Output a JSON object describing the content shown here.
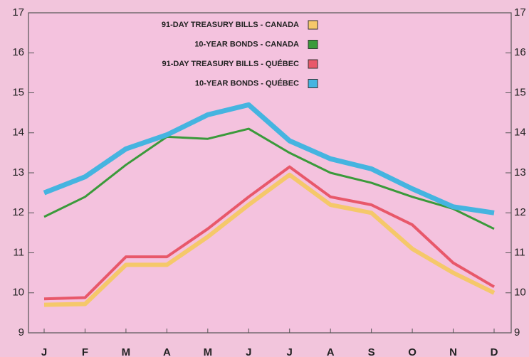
{
  "chart_data": {
    "type": "line",
    "categories": [
      "J",
      "F",
      "M",
      "A",
      "M",
      "J",
      "J",
      "A",
      "S",
      "O",
      "N",
      "D"
    ],
    "series": [
      {
        "name": "91-DAY TREASURY BILLS - CANADA",
        "color": "#f5c86a",
        "width": 6,
        "values": [
          9.7,
          9.72,
          10.7,
          10.7,
          11.4,
          12.2,
          12.95,
          12.2,
          12.0,
          11.1,
          10.5,
          10.0
        ]
      },
      {
        "name": "10-YEAR BONDS - CANADA",
        "color": "#3a9a3a",
        "width": 3,
        "values": [
          11.9,
          12.4,
          13.2,
          13.9,
          13.85,
          14.1,
          13.5,
          13.0,
          12.75,
          12.4,
          12.1,
          11.6
        ]
      },
      {
        "name": "91-DAY TREASURY BILLS - QUÉBEC",
        "color": "#e8586a",
        "width": 4,
        "values": [
          9.85,
          9.88,
          10.9,
          10.9,
          11.6,
          12.4,
          13.15,
          12.4,
          12.2,
          11.7,
          10.75,
          10.15
        ]
      },
      {
        "name": "10-YEAR BONDS - QUÉBEC",
        "color": "#45b4e0",
        "width": 7,
        "values": [
          12.5,
          12.9,
          13.6,
          13.95,
          14.45,
          14.7,
          13.8,
          13.35,
          13.1,
          12.6,
          12.15,
          12.0
        ]
      }
    ],
    "ylim": [
      9,
      17
    ],
    "yticks": [
      9,
      10,
      11,
      12,
      13,
      14,
      15,
      16,
      17
    ]
  }
}
